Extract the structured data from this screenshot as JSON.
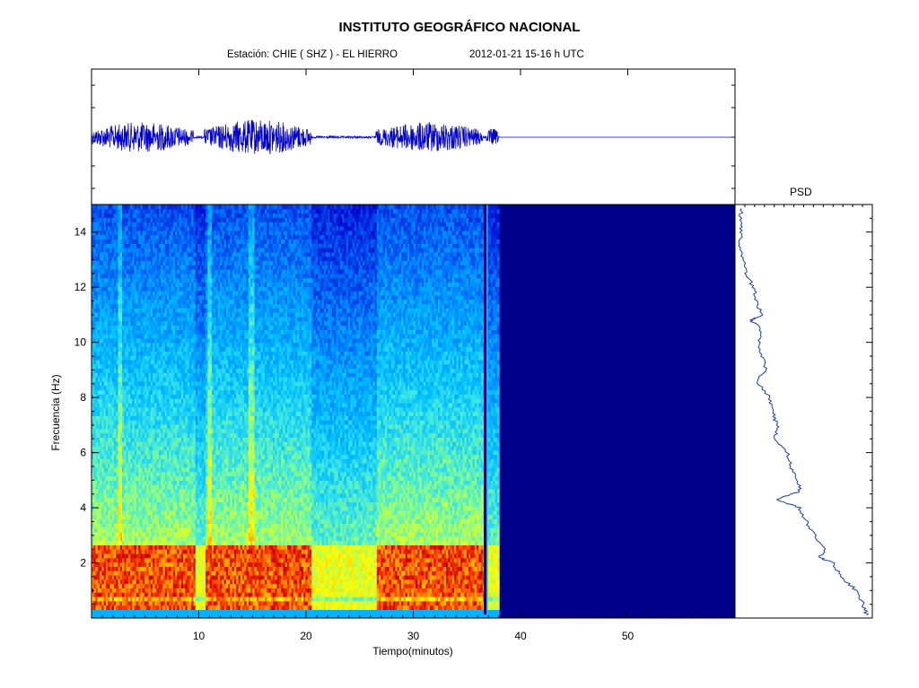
{
  "header": {
    "title": "INSTITUTO GEOGRÁFICO NACIONAL",
    "station_text": "Estación:  CHIE ( SHZ ) - EL HIERRO",
    "datetime_text": "2012-01-21  15-16 h UTC"
  },
  "chart_data": [
    {
      "type": "line",
      "panel": "seismogram",
      "xlim": [
        0,
        60
      ],
      "signal_end_min": 38,
      "bursts": [
        {
          "start": 0,
          "end": 9.5,
          "amplitude": 0.6
        },
        {
          "start": 10.5,
          "end": 20.5,
          "amplitude": 0.7
        },
        {
          "start": 26.5,
          "end": 36.5,
          "amplitude": 0.6
        },
        {
          "start": 36.8,
          "end": 38,
          "amplitude": 0.35
        }
      ],
      "grid": false
    },
    {
      "type": "heatmap",
      "panel": "spectrogram",
      "xlabel": "Tiempo(minutos)",
      "ylabel": "Frecuencia  (Hz)",
      "xlim": [
        0,
        60
      ],
      "ylim": [
        0,
        15
      ],
      "x_ticks": [
        "10",
        "20",
        "30",
        "40",
        "50"
      ],
      "x_tick_values": [
        10,
        20,
        30,
        40,
        50
      ],
      "y_ticks": [
        "2",
        "4",
        "6",
        "8",
        "10",
        "12",
        "14"
      ],
      "y_tick_values": [
        2,
        4,
        6,
        8,
        10,
        12,
        14
      ],
      "energetic_bands_hz": [
        [
          0.3,
          2.5
        ]
      ],
      "active_intervals_min": [
        [
          0,
          9.5
        ],
        [
          10.5,
          20.5
        ],
        [
          26.5,
          36.5
        ]
      ],
      "spike_min": 36.7,
      "data_end_min": 38,
      "colors": {
        "low": "#00008b",
        "mid": "#00bfff",
        "high": "#ffff00",
        "peak": "#ff2000"
      }
    },
    {
      "type": "line",
      "panel": "psd",
      "title": "PSD",
      "ylim": [
        0,
        15
      ],
      "points_freq_hz": [
        0.1,
        0.5,
        1.0,
        1.5,
        2.0,
        2.2,
        2.5,
        3.0,
        3.5,
        4.0,
        4.3,
        4.6,
        5.0,
        5.5,
        6.0,
        6.5,
        7.0,
        7.5,
        8.0,
        8.6,
        9.0,
        9.5,
        10.0,
        10.5,
        10.8,
        11.0,
        11.5,
        12.0,
        12.5,
        13.0,
        13.5,
        14.0,
        14.5,
        14.9
      ],
      "points_level": [
        0.98,
        0.95,
        0.9,
        0.78,
        0.72,
        0.62,
        0.66,
        0.58,
        0.52,
        0.47,
        0.3,
        0.47,
        0.45,
        0.4,
        0.38,
        0.28,
        0.3,
        0.26,
        0.24,
        0.14,
        0.22,
        0.18,
        0.16,
        0.18,
        0.1,
        0.18,
        0.14,
        0.12,
        0.06,
        0.04,
        0.02,
        0.03,
        0.02,
        0.03
      ]
    }
  ]
}
